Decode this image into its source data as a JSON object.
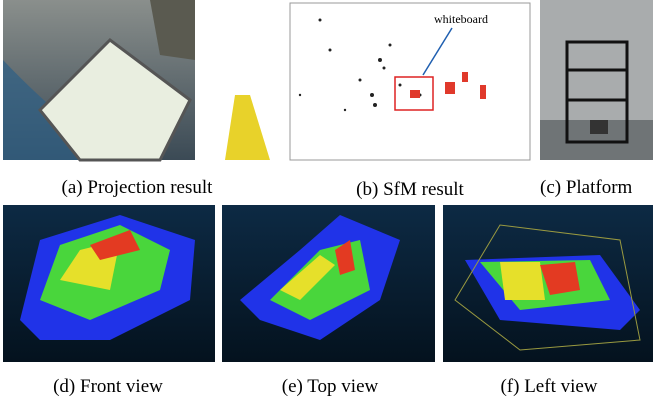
{
  "figure": {
    "panels": [
      {
        "caption": "(a) Projection result"
      },
      {
        "caption": "(b) SfM result",
        "annotation": "whiteboard"
      },
      {
        "caption": "(c) Platform"
      },
      {
        "caption": "(d) Front view"
      },
      {
        "caption": "(e) Top view"
      },
      {
        "caption": "(f) Left view"
      }
    ]
  }
}
